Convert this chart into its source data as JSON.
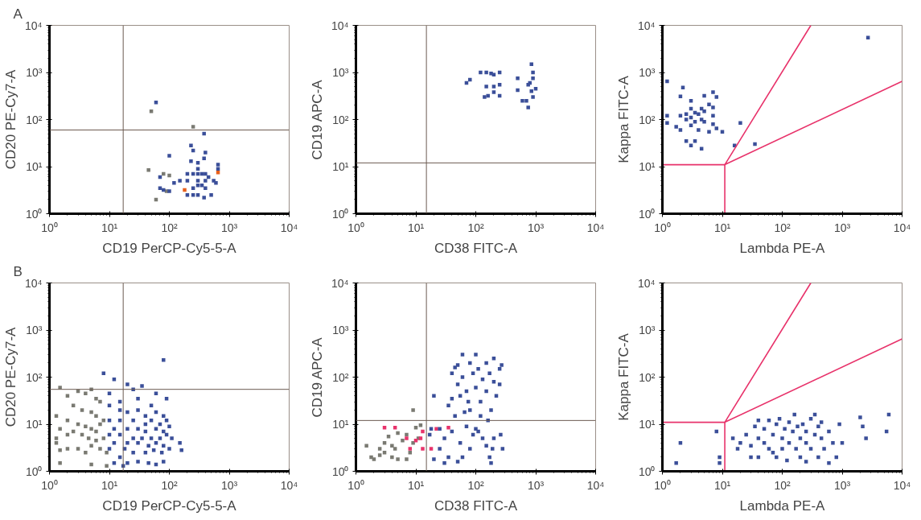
{
  "chart_data": [
    {
      "type": "scatter",
      "title": "A",
      "xlabel": "CD19 PerCP-Cy5-5-A",
      "ylabel": "CD20 PE-Cy7-A",
      "log": "xy",
      "marker": "square",
      "xlim": [
        1,
        10000
      ],
      "ylim": [
        1,
        10000
      ],
      "xticks": [
        {
          "value": 1,
          "label": "10⁰"
        },
        {
          "value": 10,
          "label": "10¹"
        },
        {
          "value": 100,
          "label": "10²"
        },
        {
          "value": 1000,
          "label": "10³"
        },
        {
          "value": 10000,
          "label": "10⁴"
        }
      ],
      "yticks": [
        {
          "value": 1,
          "label": "10⁰"
        },
        {
          "value": 10,
          "label": "10¹"
        },
        {
          "value": 100,
          "label": "10²"
        },
        {
          "value": 1000,
          "label": "10³"
        },
        {
          "value": 10000,
          "label": "10⁴"
        }
      ],
      "ref_lines": [
        {
          "axis": "x",
          "value": 17,
          "color": "#6b5a50"
        },
        {
          "axis": "y",
          "value": 60,
          "color": "#6b5a50"
        }
      ],
      "series": [
        {
          "color": "#7a7a72",
          "x": [
            50,
            250,
            45,
            80,
            100,
            60,
            90
          ],
          "values": [
            150,
            70,
            8.5,
            7,
            6.5,
            2,
            3
          ]
        },
        {
          "color": "#3b4f99",
          "x": [
            60,
            230,
            250,
            380,
            400,
            100,
            380,
            230,
            300,
            650,
            650,
            300,
            200,
            250,
            300,
            350,
            400,
            70,
            300,
            400,
            450,
            150,
            200,
            550,
            600,
            70,
            80,
            250,
            300,
            350,
            400,
            200,
            250,
            300,
            380,
            500,
            120,
            100
          ],
          "values": [
            230,
            28,
            22,
            50,
            20,
            17,
            15,
            13,
            12,
            11,
            9,
            9,
            7,
            7,
            7,
            7,
            7,
            6,
            5,
            5,
            6,
            5,
            5,
            5,
            4.5,
            3.5,
            3.2,
            3.5,
            4,
            4,
            3.5,
            2.5,
            2.5,
            2.5,
            2.2,
            2.5,
            4.5,
            3
          ]
        },
        {
          "color": "#e8601c",
          "x": [
            180,
            650
          ],
          "values": [
            3.2,
            7.5
          ]
        }
      ]
    },
    {
      "type": "scatter",
      "xlabel": "CD38 FITC-A",
      "ylabel": "CD19 APC-A",
      "log": "xy",
      "marker": "square",
      "xlim": [
        1,
        10000
      ],
      "ylim": [
        1,
        10000
      ],
      "xticks": [
        {
          "value": 1,
          "label": "10⁰"
        },
        {
          "value": 10,
          "label": "10¹"
        },
        {
          "value": 100,
          "label": "10²"
        },
        {
          "value": 1000,
          "label": "10³"
        },
        {
          "value": 10000,
          "label": "10⁴"
        }
      ],
      "yticks": [
        {
          "value": 1,
          "label": "10⁰"
        },
        {
          "value": 10,
          "label": "10¹"
        },
        {
          "value": 100,
          "label": "10²"
        },
        {
          "value": 1000,
          "label": "10³"
        },
        {
          "value": 10000,
          "label": "10⁴"
        }
      ],
      "ref_lines": [
        {
          "axis": "x",
          "value": 15,
          "color": "#6b5a50"
        },
        {
          "axis": "y",
          "value": 12,
          "color": "#6b5a50"
        }
      ],
      "series": [
        {
          "color": "#3b4f99",
          "x": [
            70,
            80,
            120,
            150,
            180,
            200,
            250,
            150,
            200,
            250,
            140,
            160,
            200,
            250,
            500,
            500,
            600,
            700,
            750,
            800,
            750,
            850,
            900,
            900,
            1000,
            900,
            850
          ],
          "values": [
            600,
            700,
            1000,
            1000,
            950,
            900,
            1000,
            500,
            500,
            550,
            300,
            320,
            380,
            320,
            750,
            420,
            250,
            250,
            180,
            600,
            550,
            1500,
            1000,
            750,
            450,
            300,
            400
          ]
        }
      ]
    },
    {
      "type": "scatter",
      "xlabel": "Lambda PE-A",
      "ylabel": "Kappa FITC-A",
      "log": "xy",
      "marker": "square",
      "xlim": [
        1,
        10000
      ],
      "ylim": [
        1,
        10000
      ],
      "xticks": [
        {
          "value": 1,
          "label": "10⁰"
        },
        {
          "value": 10,
          "label": "10¹"
        },
        {
          "value": 100,
          "label": "10²"
        },
        {
          "value": 1000,
          "label": "10³"
        },
        {
          "value": 10000,
          "label": "10⁴"
        }
      ],
      "yticks": [
        {
          "value": 1,
          "label": "10⁰"
        },
        {
          "value": 10,
          "label": "10¹"
        },
        {
          "value": 100,
          "label": "10²"
        },
        {
          "value": 1000,
          "label": "10³"
        },
        {
          "value": 10000,
          "label": "10⁴"
        }
      ],
      "series": [
        {
          "color": "#3b4f99",
          "x": [
            1.2,
            2.2,
            1.2,
            1.2,
            2,
            2,
            2.5,
            1.7,
            3,
            3,
            3,
            3,
            3.5,
            3.5,
            4,
            4,
            4.5,
            4.5,
            5,
            5,
            5,
            6,
            7,
            7,
            7,
            7,
            8,
            8,
            10,
            2.5,
            3,
            3.5,
            4.5,
            16,
            20,
            35,
            2700,
            2,
            2.5,
            6
          ],
          "values": [
            650,
            480,
            120,
            85,
            310,
            60,
            130,
            70,
            250,
            170,
            110,
            75,
            140,
            90,
            60,
            130,
            170,
            100,
            320,
            150,
            90,
            55,
            380,
            180,
            120,
            80,
            300,
            65,
            55,
            35,
            28,
            35,
            24,
            28,
            85,
            30,
            5500,
            120,
            100,
            210
          ]
        },
        {
          "type": "line",
          "marker": "none",
          "color": "#e8336b",
          "x": [
            1,
            11,
            11
          ],
          "values": [
            11,
            11,
            1
          ]
        },
        {
          "type": "line",
          "marker": "none",
          "color": "#e8336b",
          "x": [
            300,
            11,
            10000
          ],
          "values": [
            10000,
            11,
            650
          ]
        }
      ]
    },
    {
      "type": "scatter",
      "title": "B",
      "xlabel": "CD19 PerCP-Cy5-5-A",
      "ylabel": "CD20 PE-Cy7-A",
      "log": "xy",
      "marker": "square",
      "xlim": [
        1,
        10000
      ],
      "ylim": [
        1,
        10000
      ],
      "xticks": [
        {
          "value": 1,
          "label": "10⁰"
        },
        {
          "value": 10,
          "label": "10¹"
        },
        {
          "value": 100,
          "label": "10²"
        },
        {
          "value": 1000,
          "label": "10³"
        },
        {
          "value": 10000,
          "label": "10⁴"
        }
      ],
      "yticks": [
        {
          "value": 1,
          "label": "10⁰"
        },
        {
          "value": 10,
          "label": "10¹"
        },
        {
          "value": 100,
          "label": "10²"
        },
        {
          "value": 1000,
          "label": "10³"
        },
        {
          "value": 10000,
          "label": "10⁴"
        }
      ],
      "ref_lines": [
        {
          "axis": "x",
          "value": 17,
          "color": "#6b5a50"
        },
        {
          "axis": "y",
          "value": 55,
          "color": "#6b5a50"
        }
      ],
      "series": [
        {
          "color": "#7a7a72",
          "x": [
            1.5,
            2,
            3,
            4,
            5,
            6,
            7,
            2.5,
            3.5,
            5,
            6,
            8,
            1.3,
            2,
            3,
            4,
            5,
            6,
            7,
            1.5,
            2.5,
            3.5,
            4.5,
            6,
            8,
            1.3,
            1.5,
            2,
            3,
            4,
            5,
            7,
            9,
            1.5,
            5,
            9,
            1.3,
            2
          ],
          "values": [
            60,
            40,
            50,
            45,
            55,
            35,
            30,
            25,
            20,
            18,
            15,
            12,
            15,
            12,
            10,
            9,
            8,
            7,
            10,
            8,
            7,
            6,
            5,
            4.5,
            5,
            4,
            2.8,
            3,
            3,
            2.5,
            3.5,
            3,
            2.5,
            1.5,
            1.4,
            1.3,
            5,
            6
          ]
        },
        {
          "color": "#3b4f99",
          "x": [
            80,
            8,
            12,
            20,
            35,
            25,
            10,
            60,
            90,
            15,
            30,
            50,
            10,
            15,
            20,
            30,
            40,
            60,
            80,
            10,
            15,
            25,
            40,
            50,
            70,
            90,
            12,
            20,
            30,
            40,
            60,
            80,
            100,
            10,
            15,
            25,
            35,
            50,
            70,
            90,
            110,
            12,
            20,
            30,
            45,
            60,
            80,
            150,
            160,
            10,
            18,
            25,
            40,
            55,
            75,
            100,
            15,
            20,
            30,
            45,
            60,
            80,
            12,
            17
          ],
          "values": [
            230,
            120,
            90,
            70,
            65,
            55,
            45,
            45,
            35,
            30,
            35,
            25,
            25,
            20,
            18,
            20,
            15,
            18,
            15,
            12,
            12,
            12,
            10,
            12,
            10,
            12,
            8,
            8,
            8,
            7,
            8,
            7,
            9,
            6,
            6,
            5,
            5,
            5,
            5,
            6,
            5,
            4,
            4,
            4,
            3.5,
            4,
            3.5,
            4,
            2.8,
            3,
            3,
            2.5,
            2.5,
            2.8,
            2.5,
            3,
            2,
            1.5,
            1.6,
            1.5,
            1.4,
            1.6,
            1.5,
            1.3
          ]
        }
      ]
    },
    {
      "type": "scatter",
      "xlabel": "CD38 FITC-A",
      "ylabel": "CD19 APC-A",
      "log": "xy",
      "marker": "square",
      "xlim": [
        1,
        10000
      ],
      "ylim": [
        1,
        10000
      ],
      "xticks": [
        {
          "value": 1,
          "label": "10⁰"
        },
        {
          "value": 10,
          "label": "10¹"
        },
        {
          "value": 100,
          "label": "10²"
        },
        {
          "value": 1000,
          "label": "10³"
        },
        {
          "value": 10000,
          "label": "10⁴"
        }
      ],
      "yticks": [
        {
          "value": 1,
          "label": "10⁰"
        },
        {
          "value": 10,
          "label": "10¹"
        },
        {
          "value": 100,
          "label": "10²"
        },
        {
          "value": 1000,
          "label": "10³"
        },
        {
          "value": 10000,
          "label": "10⁴"
        }
      ],
      "ref_lines": [
        {
          "axis": "x",
          "value": 15,
          "color": "#6b5a50"
        },
        {
          "axis": "y",
          "value": 12,
          "color": "#6b5a50"
        }
      ],
      "series": [
        {
          "color": "#7a7a72",
          "x": [
            1.5,
            1.8,
            2,
            2.5,
            3,
            3,
            3.5,
            4,
            4.5,
            5,
            5,
            6,
            7,
            7,
            8,
            9,
            9,
            10,
            11,
            12,
            2.5,
            4
          ],
          "values": [
            3.5,
            2,
            1.8,
            2.2,
            4,
            2.5,
            5.5,
            3.5,
            3,
            6.5,
            1.8,
            4.5,
            6,
            1.8,
            2.5,
            20,
            4,
            8.5,
            5,
            9.5,
            3,
            2
          ]
        },
        {
          "color": "#e8336b",
          "x": [
            3,
            4.5,
            8,
            10,
            12,
            13,
            13,
            18,
            35,
            22,
            7
          ],
          "values": [
            8.5,
            8.5,
            3,
            4.5,
            5,
            7,
            3,
            3,
            8.5,
            8,
            5
          ]
        },
        {
          "color": "#3b4f99",
          "x": [
            17,
            18,
            20,
            25,
            30,
            35,
            40,
            45,
            50,
            50,
            60,
            60,
            70,
            80,
            80,
            90,
            100,
            100,
            110,
            120,
            130,
            150,
            150,
            170,
            200,
            200,
            220,
            250,
            250,
            270,
            40,
            45,
            55,
            65,
            75,
            180,
            120,
            160,
            25,
            35,
            40,
            55,
            60,
            70,
            80,
            90,
            100,
            110,
            130,
            150,
            170,
            190,
            200,
            260,
            280,
            20,
            30,
            50,
            180
          ],
          "values": [
            6,
            8,
            40,
            8,
            5,
            25,
            35,
            15,
            70,
            180,
            100,
            300,
            50,
            200,
            20,
            120,
            60,
            300,
            150,
            30,
            90,
            200,
            50,
            120,
            250,
            80,
            40,
            150,
            70,
            180,
            120,
            160,
            40,
            18,
            30,
            20,
            15,
            12,
            3,
            2,
            7,
            4,
            2,
            9,
            3,
            6,
            8,
            7,
            5,
            3.5,
            2,
            3,
            5,
            6,
            3,
            1.8,
            1.5,
            1.6,
            1.5
          ]
        }
      ]
    },
    {
      "type": "scatter",
      "xlabel": "Lambda PE-A",
      "ylabel": "Kappa FITC-A",
      "log": "xy",
      "marker": "square",
      "xlim": [
        1,
        10000
      ],
      "ylim": [
        1,
        10000
      ],
      "xticks": [
        {
          "value": 1,
          "label": "10⁰"
        },
        {
          "value": 10,
          "label": "10¹"
        },
        {
          "value": 100,
          "label": "10²"
        },
        {
          "value": 1000,
          "label": "10³"
        },
        {
          "value": 10000,
          "label": "10⁴"
        }
      ],
      "yticks": [
        {
          "value": 1,
          "label": "10⁰"
        },
        {
          "value": 10,
          "label": "10¹"
        },
        {
          "value": 100,
          "label": "10²"
        },
        {
          "value": 1000,
          "label": "10³"
        },
        {
          "value": 10000,
          "label": "10⁴"
        }
      ],
      "series": [
        {
          "color": "#3b4f99",
          "x": [
            1.7,
            2,
            8,
            9,
            9,
            15,
            18,
            20,
            25,
            30,
            30,
            35,
            40,
            40,
            50,
            50,
            60,
            70,
            80,
            80,
            100,
            100,
            110,
            120,
            130,
            150,
            160,
            170,
            200,
            200,
            220,
            250,
            250,
            300,
            350,
            350,
            400,
            400,
            450,
            500,
            600,
            700,
            800,
            900,
            1000,
            2000,
            2200,
            2500,
            5500,
            6000,
            60,
            90,
            130,
            180,
            300,
            450,
            40,
            70,
            250,
            600
          ],
          "values": [
            1.5,
            4,
            7,
            2,
            1.5,
            5,
            3,
            4,
            6,
            2,
            3.5,
            9,
            5,
            2,
            8,
            4,
            3,
            6,
            10,
            2,
            5,
            3,
            8,
            1.7,
            4,
            7,
            16,
            3,
            5,
            2,
            10,
            7,
            4,
            3,
            6,
            16,
            9,
            2,
            5,
            3,
            7,
            4,
            2,
            10,
            4,
            14,
            9,
            5,
            7,
            16,
            12,
            13,
            11,
            9,
            13,
            11,
            12,
            2.5,
            1.6,
            1.5
          ]
        },
        {
          "type": "line",
          "marker": "none",
          "color": "#e8336b",
          "x": [
            1,
            11,
            11
          ],
          "values": [
            11,
            11,
            1
          ]
        },
        {
          "type": "line",
          "marker": "none",
          "color": "#e8336b",
          "x": [
            300,
            11,
            10000
          ],
          "values": [
            10000,
            11,
            650
          ]
        }
      ]
    }
  ]
}
